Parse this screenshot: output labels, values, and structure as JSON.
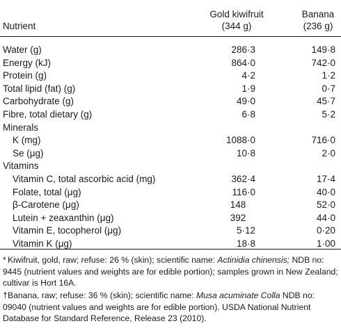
{
  "header": {
    "nutrient": "Nutrient",
    "col1_name": "Gold kiwifruit",
    "col1_weight": "(344 g)",
    "col2_name": "Banana",
    "col2_weight": "(236 g)"
  },
  "rows": [
    {
      "label": "Water (g)",
      "v1": "286·3",
      "v2": "149·8",
      "indent": false
    },
    {
      "label": "Energy (kJ)",
      "v1": "864·0",
      "v2": "742·0",
      "indent": false
    },
    {
      "label": "Protein (g)",
      "v1": "4·2",
      "v2": "1·2",
      "indent": false
    },
    {
      "label": "Total lipid (fat) (g)",
      "v1": "1·9",
      "v2": "0·7",
      "indent": false
    },
    {
      "label": "Carbohydrate (g)",
      "v1": "49·0",
      "v2": "45·7",
      "indent": false
    },
    {
      "label": "Fibre, total dietary (g)",
      "v1": "6·8",
      "v2": "5·2",
      "indent": false
    },
    {
      "label": "Minerals",
      "v1": "",
      "v2": "",
      "indent": false
    },
    {
      "label": "K (mg)",
      "v1": "1088·0",
      "v2": "716·0",
      "indent": true
    },
    {
      "label": "Se (μg)",
      "v1": "10·8",
      "v2": "2·0",
      "indent": true
    },
    {
      "label": "Vitamins",
      "v1": "",
      "v2": "",
      "indent": false
    },
    {
      "label": "Vitamin C, total ascorbic acid (mg)",
      "v1": "362·4",
      "v2": "17·4",
      "indent": true
    },
    {
      "label": "Folate, total (μg)",
      "v1": "116·0",
      "v2": "40·0",
      "indent": true
    },
    {
      "label": "β-Carotene (μg)",
      "v1": "148",
      "v2": "52·0",
      "indent": true,
      "v1_mid": true
    },
    {
      "label": "Lutein + zeaxanthin (μg)",
      "v1": "392",
      "v2": "44·0",
      "indent": true,
      "v1_mid": true
    },
    {
      "label": "Vitamin E, tocopherol (μg)",
      "v1": "5·12",
      "v2": "0·20",
      "indent": true
    },
    {
      "label": "Vitamin K (μg)",
      "v1": "18·8",
      "v2": "1·00",
      "indent": true
    }
  ],
  "footnotes": {
    "kiwi_mark": "*",
    "kiwi_pre": "Kiwifruit, gold, raw; refuse: 26 % (skin); scientific name: ",
    "kiwi_sci": "Actinidia chinensis;",
    "kiwi_post": " NDB no: 9445 (nutrient values and weights are for edible portion); samples grown in New Zealand; cultivar is Hort 16A.",
    "banana_mark": "†",
    "banana_pre": "Banana, raw; refuse: 36 % (skin); scientific name: ",
    "banana_sci": "Musa acuminate Colla",
    "banana_post": " NDB no: 09040 (nutrient values and weights are for edible portion). USDA National Nutrient Database for Standard Reference, Release 23 (2010)."
  }
}
